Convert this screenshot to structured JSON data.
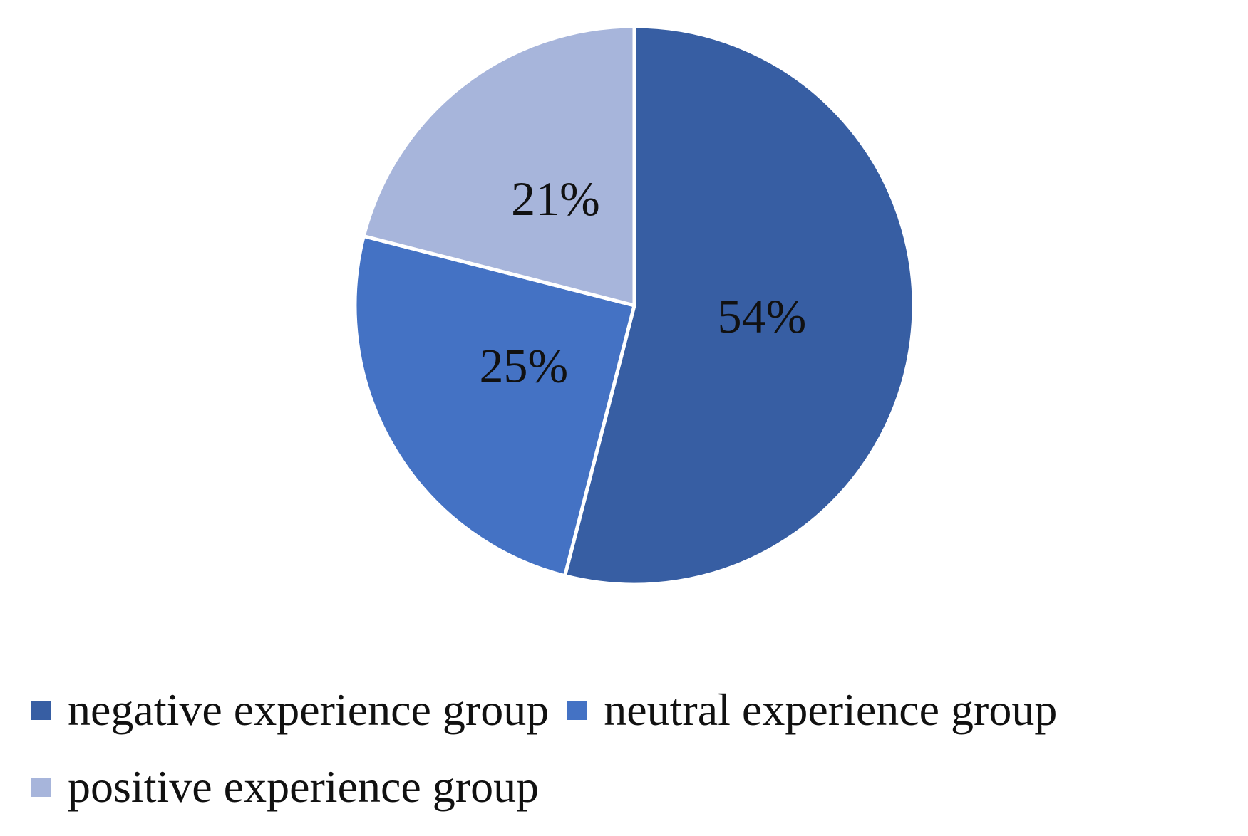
{
  "chart_data": {
    "type": "pie",
    "categories": [
      "negative experience group",
      "neutral experience group",
      "positive experience group"
    ],
    "values": [
      54,
      25,
      21
    ],
    "value_labels": [
      "54%",
      "25%",
      "21%"
    ],
    "colors": [
      "#375ea3",
      "#4472c4",
      "#a7b5db"
    ]
  }
}
